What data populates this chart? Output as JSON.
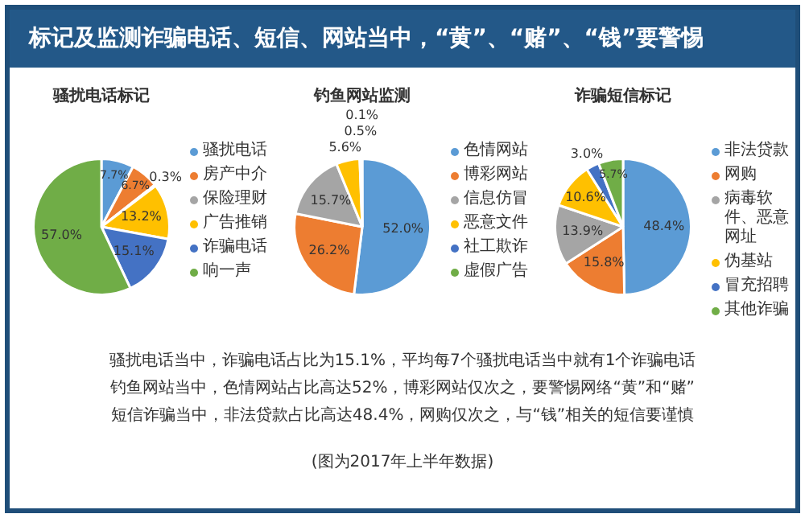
{
  "chart_data": [
    {
      "type": "other",
      "title": "标记及监测诈骗电话、短信、网站当中，“黄”、“赌”、“钱”要警惕",
      "annotations": [
        "骚扰电话当中，诈骗电话占比为15.1%，平均每7个骚扰电话当中就有1个诈骗电话",
        "钓鱼网站当中，色情网站占比高达52%，博彩网站仅次之，要警惕网络“黄”和“赌”",
        "短信诈骗当中，非法贷款占比高达48.4%，网购仅次之，与“钱”相关的短信要谨慎",
        "(图为2017年上半年数据)"
      ]
    },
    {
      "type": "pie",
      "title": "骚扰电话标记",
      "categories": [
        "骚扰电话",
        "房产中介",
        "保险理财",
        "广告推销",
        "诈骗电话",
        "响一声"
      ],
      "values": [
        7.7,
        6.7,
        0.3,
        13.2,
        15.1,
        57.0
      ],
      "colors": [
        "#5b9bd5",
        "#ed7d31",
        "#a5a5a5",
        "#ffc000",
        "#4472c4",
        "#70ad47"
      ],
      "value_labels": [
        "7.7%",
        "6.7%",
        "0.3%",
        "13.2%",
        "15.1%",
        "57.0%"
      ],
      "legend": "right"
    },
    {
      "type": "pie",
      "title": "钓鱼网站监测",
      "categories": [
        "色情网站",
        "博彩网站",
        "信息仿冒",
        "恶意文件",
        "社工欺诈",
        "虚假广告"
      ],
      "values": [
        52.0,
        26.2,
        15.7,
        5.6,
        0.5,
        0.1
      ],
      "colors": [
        "#5b9bd5",
        "#ed7d31",
        "#a5a5a5",
        "#ffc000",
        "#4472c4",
        "#70ad47"
      ],
      "value_labels": [
        "52.0%",
        "26.2%",
        "15.7%",
        "5.6%",
        "0.5%",
        "0.1%"
      ],
      "legend": "right"
    },
    {
      "type": "pie",
      "title": "诈骗短信标记",
      "categories": [
        "非法贷款",
        "网购",
        "病毒软件、恶意网址",
        "伪基站",
        "冒充招聘",
        "其他诈骗"
      ],
      "values": [
        48.4,
        15.8,
        13.9,
        10.6,
        3.0,
        5.7
      ],
      "colors": [
        "#5b9bd5",
        "#ed7d31",
        "#a5a5a5",
        "#ffc000",
        "#4472c4",
        "#70ad47"
      ],
      "value_labels": [
        "48.4%",
        "15.8%",
        "13.9%",
        "10.6%",
        "3.0%",
        "5.7%"
      ],
      "legend": "right"
    }
  ]
}
